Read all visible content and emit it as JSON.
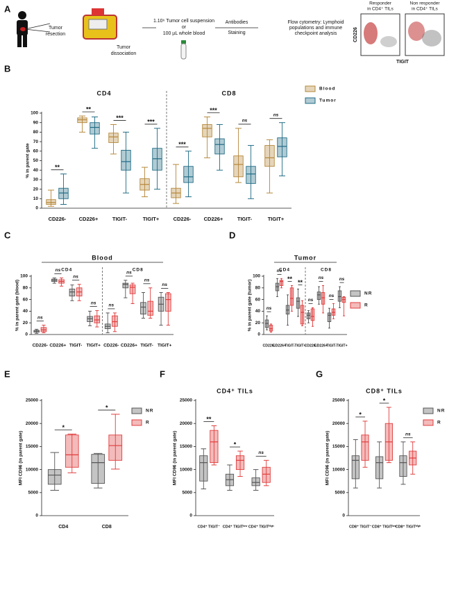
{
  "panel_a": {
    "label": "A",
    "resection": [
      "Tumor",
      "resection"
    ],
    "dissociation": [
      "Tumor",
      "dissociation"
    ],
    "suspension": [
      "1.10⁶ Tumor cell suspension",
      "or",
      "100 µL whole blood"
    ],
    "staining": [
      "Antibodies",
      "Staining"
    ],
    "flow": [
      "Flow cytometry: Lymphoid",
      "populations and immune",
      "checkpoint analysis"
    ],
    "responder": [
      "Responder",
      "in CD4⁺ TILs"
    ],
    "non_responder": [
      "Non responder",
      "in CD4⁺ TILs"
    ],
    "y_axis": "CD226",
    "x_axis": "TIGIT"
  },
  "chart_data": [
    {
      "type": "box",
      "panel": "B",
      "groups": [
        "CD4",
        "CD8"
      ],
      "ylabel": "% in parent gate",
      "categories": [
        "CD226-",
        "CD226+",
        "TIGIT-",
        "TIGIT+",
        "CD226-",
        "CD226+",
        "TIGIT-",
        "TIGIT+"
      ],
      "ylim": [
        0,
        100
      ],
      "yticks": [
        0,
        10,
        20,
        30,
        40,
        50,
        60,
        70,
        80,
        90,
        100
      ],
      "significance": [
        "**",
        "**",
        "***",
        "***",
        "***",
        "***",
        "ns",
        "ns"
      ],
      "series": [
        {
          "name": "Blood",
          "color": "#b5873a",
          "min": [
            2,
            80,
            57,
            12,
            5,
            53,
            27,
            16
          ],
          "q1": [
            4,
            90,
            69,
            19,
            11,
            75,
            33,
            44
          ],
          "median": [
            6,
            93,
            75,
            25,
            16,
            84,
            46,
            53
          ],
          "q3": [
            9,
            95,
            79,
            31,
            21,
            88,
            55,
            66
          ],
          "max": [
            19,
            97,
            88,
            43,
            46,
            96,
            84,
            72
          ]
        },
        {
          "name": "Tumor",
          "color": "#1f6b84",
          "min": [
            4,
            63,
            16,
            20,
            12,
            40,
            10,
            34
          ],
          "q1": [
            10,
            78,
            40,
            40,
            27,
            57,
            26,
            54
          ],
          "median": [
            16,
            85,
            49,
            52,
            33,
            67,
            36,
            65
          ],
          "q3": [
            21,
            90,
            61,
            63,
            44,
            73,
            44,
            74
          ],
          "max": [
            36,
            96,
            80,
            84,
            60,
            88,
            66,
            90
          ]
        }
      ]
    },
    {
      "type": "box",
      "panel": "C",
      "title": "Blood",
      "groups": [
        "CD4",
        "CD8"
      ],
      "ylabel": "% in parent gate (blood)",
      "categories": [
        "CD226-",
        "CD226+",
        "TIGIT-",
        "TIGIT+",
        "CD226-",
        "CD226+",
        "TIGIT-",
        "TIGIT+"
      ],
      "ylim": [
        0,
        100
      ],
      "yticks": [
        0,
        20,
        40,
        60,
        80,
        100
      ],
      "significance": [
        "ns",
        "ns",
        "ns",
        "ns",
        "ns",
        "ns",
        "ns",
        "ns"
      ],
      "series": [
        {
          "name": "NR",
          "color": "#555555",
          "min": [
            2,
            88,
            58,
            15,
            3,
            63,
            28,
            16
          ],
          "q1": [
            4,
            91,
            66,
            22,
            10,
            80,
            35,
            40
          ],
          "median": [
            6,
            93,
            73,
            27,
            14,
            86,
            47,
            52
          ],
          "q3": [
            7,
            95,
            78,
            31,
            18,
            88,
            55,
            64
          ],
          "max": [
            9,
            97,
            85,
            40,
            37,
            93,
            72,
            72
          ]
        },
        {
          "name": "R",
          "color": "#e03c3c",
          "min": [
            3,
            83,
            58,
            13,
            5,
            53,
            28,
            16
          ],
          "q1": [
            5,
            88,
            66,
            20,
            14,
            70,
            33,
            40
          ],
          "median": [
            8,
            91,
            73,
            25,
            22,
            81,
            40,
            60
          ],
          "q3": [
            12,
            94,
            80,
            32,
            32,
            85,
            57,
            70
          ],
          "max": [
            16,
            97,
            86,
            41,
            37,
            88,
            80,
            72
          ]
        }
      ]
    },
    {
      "type": "box",
      "panel": "D",
      "title": "Tumor",
      "groups": [
        "CD4",
        "CD8"
      ],
      "ylabel": "% in parent gate (tumor)",
      "categories": [
        "CD226-",
        "CD226+",
        "TIGIT-",
        "TIGIT+",
        "CD226-",
        "CD226+",
        "TIGIT-",
        "TIGIT+"
      ],
      "ylim": [
        0,
        100
      ],
      "yticks": [
        0,
        20,
        40,
        60,
        80,
        100
      ],
      "significance": [
        "ns",
        "ns",
        "**",
        "**",
        "ns",
        "ns",
        "ns",
        "ns"
      ],
      "series": [
        {
          "name": "NR",
          "color": "#555555",
          "min": [
            8,
            65,
            16,
            31,
            20,
            52,
            11,
            46
          ],
          "q1": [
            12,
            75,
            35,
            45,
            27,
            60,
            22,
            57
          ],
          "median": [
            19,
            82,
            42,
            57,
            33,
            68,
            33,
            65
          ],
          "q3": [
            25,
            88,
            50,
            63,
            37,
            73,
            37,
            75
          ],
          "max": [
            32,
            96,
            68,
            78,
            41,
            82,
            45,
            82
          ]
        },
        {
          "name": "R",
          "color": "#e03c3c",
          "min": [
            4,
            80,
            40,
            15,
            14,
            37,
            27,
            32
          ],
          "q1": [
            6,
            84,
            50,
            18,
            24,
            52,
            33,
            55
          ],
          "median": [
            10,
            91,
            62,
            38,
            31,
            63,
            38,
            60
          ],
          "q3": [
            16,
            93,
            80,
            50,
            44,
            72,
            44,
            64
          ],
          "max": [
            18,
            96,
            84,
            58,
            46,
            84,
            53,
            65
          ]
        }
      ]
    },
    {
      "type": "box",
      "panel": "E",
      "ylabel": "MFI CD96 (in parent gate)",
      "categories": [
        "CD4",
        "CD8"
      ],
      "ylim": [
        0,
        25000
      ],
      "yticks": [
        0,
        5000,
        10000,
        15000,
        20000,
        25000
      ],
      "significance": [
        "*",
        "*"
      ],
      "series": [
        {
          "name": "NR",
          "color": "#555555",
          "min": [
            5500,
            6000
          ],
          "q1": [
            6800,
            7000
          ],
          "median": [
            8800,
            11500
          ],
          "q3": [
            10000,
            13300
          ],
          "max": [
            13700,
            13500
          ]
        },
        {
          "name": "R",
          "color": "#e03c3c",
          "min": [
            9300,
            10100
          ],
          "q1": [
            10500,
            12000
          ],
          "median": [
            13200,
            15200
          ],
          "q3": [
            17500,
            17500
          ],
          "max": [
            17700,
            22000
          ]
        }
      ]
    },
    {
      "type": "box",
      "panel": "F",
      "title": "CD4⁺ TILs",
      "ylabel": "MFI CD96 (in parent gate)",
      "categories": [
        "CD4⁺ TIGIT⁻",
        "CD4⁺ TIGITˡᵒʷ",
        "CD4⁺ TIGITʰⁱᵍʰ"
      ],
      "ylim": [
        0,
        25000
      ],
      "yticks": [
        0,
        5000,
        10000,
        15000,
        20000,
        25000
      ],
      "significance": [
        "**",
        "*",
        "ns"
      ],
      "series": [
        {
          "name": "NR",
          "color": "#555555",
          "min": [
            5800,
            5500,
            5500
          ],
          "q1": [
            7500,
            6500,
            6500
          ],
          "median": [
            11500,
            7800,
            7200
          ],
          "q3": [
            13000,
            9000,
            8200
          ],
          "max": [
            14500,
            11000,
            10000
          ]
        },
        {
          "name": "R",
          "color": "#e03c3c",
          "min": [
            11000,
            8500,
            6500
          ],
          "q1": [
            11500,
            10000,
            7200
          ],
          "median": [
            16000,
            12000,
            9000
          ],
          "q3": [
            18500,
            13000,
            10500
          ],
          "max": [
            19500,
            14000,
            12000
          ]
        }
      ]
    },
    {
      "type": "box",
      "panel": "G",
      "title": "CD8⁺ TILs",
      "ylabel": "MFI CD96 (in parent gate)",
      "categories": [
        "CD8⁺ TIGIT⁻",
        "CD8⁺ TIGITˡᵒʷ",
        "CD8⁺ TIGITʰⁱᵍʰ"
      ],
      "ylim": [
        0,
        25000
      ],
      "yticks": [
        0,
        5000,
        10000,
        15000,
        20000,
        25000
      ],
      "significance": [
        "*",
        "*",
        "ns"
      ],
      "series": [
        {
          "name": "NR",
          "color": "#555555",
          "min": [
            6000,
            6000,
            6800
          ],
          "q1": [
            8000,
            8000,
            8500
          ],
          "median": [
            12000,
            11500,
            11500
          ],
          "q3": [
            13000,
            12800,
            13000
          ],
          "max": [
            16500,
            16000,
            16000
          ]
        },
        {
          "name": "R",
          "color": "#e03c3c",
          "min": [
            10500,
            11500,
            9000
          ],
          "q1": [
            12000,
            12000,
            11000
          ],
          "median": [
            16000,
            16000,
            12500
          ],
          "q3": [
            17500,
            20000,
            14000
          ],
          "max": [
            20500,
            23500,
            16000
          ]
        }
      ]
    }
  ]
}
